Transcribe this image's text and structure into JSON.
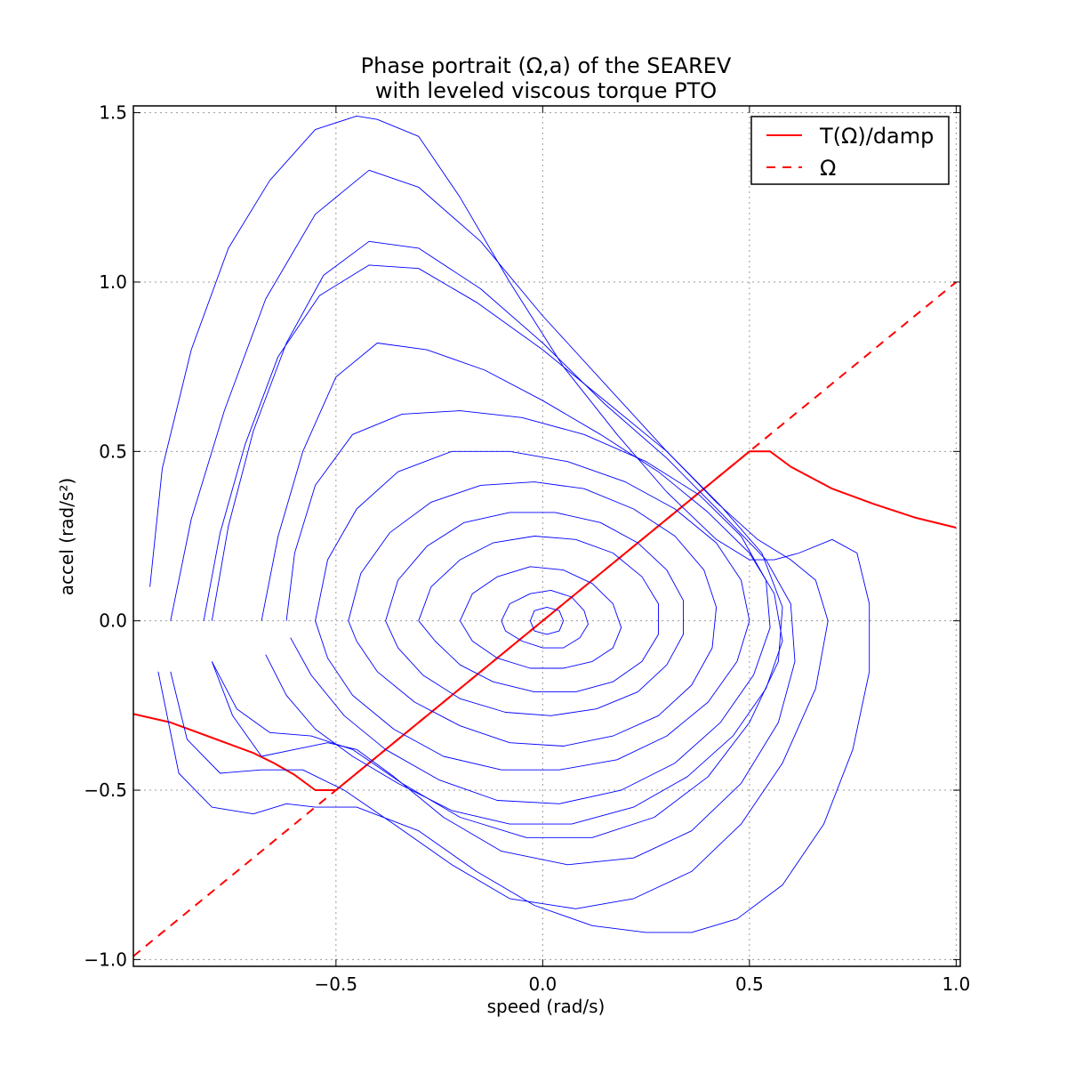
{
  "chart_data": {
    "type": "line",
    "title": "Phase portrait (Ω,a) of the SEAREV",
    "subtitle": "with leveled viscous torque PTO",
    "xlabel": "speed (rad/s)",
    "ylabel": "accel (rad/s²)",
    "xlim": [
      -0.99,
      1.01
    ],
    "ylim": [
      -1.02,
      1.52
    ],
    "xticks": [
      -0.5,
      0.0,
      0.5,
      1.0
    ],
    "xtick_labels": [
      "−0.5",
      "0.0",
      "0.5",
      "1.0"
    ],
    "yticks": [
      -1.0,
      -0.5,
      0.0,
      0.5,
      1.0,
      1.5
    ],
    "ytick_labels": [
      "−1.0",
      "−0.5",
      "0.0",
      "0.5",
      "1.0",
      "1.5"
    ],
    "grid": true,
    "legend_position": "top-right",
    "series": [
      {
        "name": "T(Ω)/damp",
        "color": "#ff0000",
        "style": "solid",
        "x": [
          -0.99,
          -0.9,
          -0.8,
          -0.7,
          -0.65,
          -0.6,
          -0.55,
          -0.5,
          0.5,
          0.55,
          0.6,
          0.7,
          0.8,
          0.9,
          1.0
        ],
        "y": [
          -0.275,
          -0.3,
          -0.345,
          -0.39,
          -0.42,
          -0.455,
          -0.5,
          -0.5,
          0.5,
          0.5,
          0.455,
          0.39,
          0.345,
          0.305,
          0.275
        ]
      },
      {
        "name": "Ω",
        "color": "#ff0000",
        "style": "dashed",
        "x": [
          -0.99,
          1.0
        ],
        "y": [
          -0.99,
          1.0
        ]
      },
      {
        "color": "#0000ff",
        "style": "solid",
        "x": [
          -0.95,
          -0.92,
          -0.85,
          -0.76,
          -0.66,
          -0.55,
          -0.45,
          -0.4,
          -0.3,
          -0.2,
          -0.08,
          0.05,
          0.18,
          0.3,
          0.42,
          0.5,
          0.56,
          0.62,
          0.7,
          0.76,
          0.79,
          0.79,
          0.75,
          0.68,
          0.58,
          0.47,
          0.36,
          0.25,
          0.12,
          -0.02,
          -0.16,
          -0.3,
          -0.45,
          -0.55,
          -0.62,
          -0.7,
          -0.8,
          -0.88,
          -0.93
        ],
        "y": [
          0.1,
          0.45,
          0.8,
          1.1,
          1.3,
          1.45,
          1.49,
          1.48,
          1.43,
          1.25,
          1.0,
          0.75,
          0.55,
          0.38,
          0.24,
          0.18,
          0.18,
          0.2,
          0.24,
          0.2,
          0.05,
          -0.15,
          -0.38,
          -0.6,
          -0.78,
          -0.88,
          -0.92,
          -0.92,
          -0.9,
          -0.84,
          -0.74,
          -0.62,
          -0.55,
          -0.55,
          -0.54,
          -0.57,
          -0.55,
          -0.45,
          -0.15
        ]
      },
      {
        "color": "#0000ff",
        "style": "solid",
        "x": [
          -0.9,
          -0.85,
          -0.77,
          -0.67,
          -0.55,
          -0.42,
          -0.3,
          -0.15,
          0.0,
          0.15,
          0.3,
          0.42,
          0.52,
          0.6,
          0.66,
          0.69,
          0.66,
          0.58,
          0.48,
          0.36,
          0.22,
          0.08,
          -0.08,
          -0.22,
          -0.36,
          -0.48,
          -0.58,
          -0.68,
          -0.78,
          -0.86,
          -0.9
        ],
        "y": [
          0.0,
          0.3,
          0.62,
          0.95,
          1.2,
          1.33,
          1.28,
          1.12,
          0.9,
          0.7,
          0.5,
          0.35,
          0.24,
          0.18,
          0.12,
          0.0,
          -0.2,
          -0.42,
          -0.6,
          -0.74,
          -0.82,
          -0.85,
          -0.82,
          -0.72,
          -0.6,
          -0.5,
          -0.44,
          -0.44,
          -0.45,
          -0.35,
          -0.15
        ]
      },
      {
        "color": "#0000ff",
        "style": "solid",
        "x": [
          -0.8,
          -0.76,
          -0.7,
          -0.62,
          -0.53,
          -0.42,
          -0.3,
          -0.15,
          0.0,
          0.15,
          0.3,
          0.43,
          0.54,
          0.6,
          0.61,
          0.57,
          0.48,
          0.36,
          0.22,
          0.06,
          -0.1,
          -0.24,
          -0.36,
          -0.45,
          -0.52,
          -0.6,
          -0.68,
          -0.75,
          -0.8
        ],
        "y": [
          0.0,
          0.28,
          0.56,
          0.82,
          1.02,
          1.12,
          1.1,
          0.98,
          0.82,
          0.64,
          0.48,
          0.32,
          0.18,
          0.05,
          -0.12,
          -0.3,
          -0.48,
          -0.62,
          -0.7,
          -0.72,
          -0.68,
          -0.58,
          -0.46,
          -0.38,
          -0.36,
          -0.38,
          -0.4,
          -0.28,
          -0.12
        ]
      },
      {
        "color": "#0000ff",
        "style": "solid",
        "x": [
          -0.82,
          -0.78,
          -0.72,
          -0.64,
          -0.54,
          -0.42,
          -0.3,
          -0.16,
          0.0,
          0.16,
          0.3,
          0.43,
          0.53,
          0.58,
          0.57,
          0.5,
          0.4,
          0.27,
          0.12,
          -0.04,
          -0.2,
          -0.34,
          -0.46,
          -0.56,
          -0.66,
          -0.74,
          -0.8
        ],
        "y": [
          0.0,
          0.26,
          0.52,
          0.78,
          0.96,
          1.05,
          1.04,
          0.94,
          0.8,
          0.64,
          0.5,
          0.34,
          0.2,
          0.04,
          -0.12,
          -0.3,
          -0.46,
          -0.58,
          -0.64,
          -0.64,
          -0.58,
          -0.48,
          -0.38,
          -0.34,
          -0.33,
          -0.26,
          -0.12
        ]
      },
      {
        "color": "#0000ff",
        "style": "solid",
        "x": [
          -0.68,
          -0.64,
          -0.58,
          -0.5,
          -0.4,
          -0.28,
          -0.14,
          0.0,
          0.14,
          0.28,
          0.4,
          0.5,
          0.56,
          0.58,
          0.54,
          0.46,
          0.35,
          0.22,
          0.07,
          -0.08,
          -0.22,
          -0.35,
          -0.46,
          -0.55,
          -0.62,
          -0.67
        ],
        "y": [
          0.0,
          0.25,
          0.5,
          0.72,
          0.82,
          0.8,
          0.74,
          0.65,
          0.55,
          0.44,
          0.32,
          0.2,
          0.08,
          -0.06,
          -0.2,
          -0.34,
          -0.46,
          -0.55,
          -0.6,
          -0.6,
          -0.56,
          -0.48,
          -0.4,
          -0.32,
          -0.22,
          -0.1
        ]
      },
      {
        "color": "#0000ff",
        "style": "solid",
        "x": [
          -0.62,
          -0.6,
          -0.55,
          -0.46,
          -0.34,
          -0.2,
          -0.05,
          0.1,
          0.25,
          0.38,
          0.48,
          0.54,
          0.55,
          0.51,
          0.43,
          0.32,
          0.19,
          0.04,
          -0.11,
          -0.25,
          -0.38,
          -0.48,
          -0.56,
          -0.61
        ],
        "y": [
          0.0,
          0.2,
          0.4,
          0.55,
          0.61,
          0.62,
          0.6,
          0.55,
          0.47,
          0.37,
          0.25,
          0.12,
          -0.02,
          -0.16,
          -0.3,
          -0.42,
          -0.5,
          -0.54,
          -0.53,
          -0.47,
          -0.38,
          -0.28,
          -0.16,
          -0.05
        ]
      },
      {
        "color": "#0000ff",
        "style": "solid",
        "x": [
          -0.55,
          -0.52,
          -0.45,
          -0.35,
          -0.22,
          -0.08,
          0.06,
          0.2,
          0.32,
          0.42,
          0.48,
          0.5,
          0.47,
          0.4,
          0.3,
          0.18,
          0.04,
          -0.1,
          -0.24,
          -0.36,
          -0.46,
          -0.52,
          -0.55
        ],
        "y": [
          0.0,
          0.18,
          0.33,
          0.44,
          0.5,
          0.5,
          0.47,
          0.41,
          0.33,
          0.23,
          0.12,
          0.0,
          -0.12,
          -0.24,
          -0.34,
          -0.41,
          -0.44,
          -0.44,
          -0.4,
          -0.32,
          -0.22,
          -0.11,
          0.0
        ]
      },
      {
        "color": "#0000ff",
        "style": "solid",
        "x": [
          -0.47,
          -0.44,
          -0.37,
          -0.27,
          -0.15,
          -0.02,
          0.1,
          0.22,
          0.32,
          0.39,
          0.42,
          0.41,
          0.36,
          0.28,
          0.17,
          0.05,
          -0.08,
          -0.2,
          -0.31,
          -0.4,
          -0.45,
          -0.47
        ],
        "y": [
          0.0,
          0.14,
          0.26,
          0.35,
          0.4,
          0.41,
          0.39,
          0.33,
          0.25,
          0.15,
          0.04,
          -0.08,
          -0.19,
          -0.28,
          -0.34,
          -0.37,
          -0.36,
          -0.31,
          -0.24,
          -0.15,
          -0.06,
          0.0
        ]
      },
      {
        "color": "#0000ff",
        "style": "solid",
        "x": [
          -0.38,
          -0.35,
          -0.28,
          -0.19,
          -0.08,
          0.03,
          0.14,
          0.23,
          0.3,
          0.34,
          0.34,
          0.3,
          0.23,
          0.13,
          0.02,
          -0.09,
          -0.2,
          -0.29,
          -0.35,
          -0.38
        ],
        "y": [
          0.0,
          0.12,
          0.22,
          0.29,
          0.32,
          0.32,
          0.29,
          0.23,
          0.15,
          0.06,
          -0.04,
          -0.13,
          -0.21,
          -0.26,
          -0.28,
          -0.27,
          -0.23,
          -0.16,
          -0.08,
          0.0
        ]
      },
      {
        "color": "#0000ff",
        "style": "solid",
        "x": [
          -0.3,
          -0.27,
          -0.2,
          -0.12,
          -0.02,
          0.08,
          0.17,
          0.24,
          0.28,
          0.28,
          0.24,
          0.17,
          0.08,
          -0.02,
          -0.12,
          -0.2,
          -0.26,
          -0.3
        ],
        "y": [
          0.0,
          0.1,
          0.18,
          0.23,
          0.25,
          0.24,
          0.2,
          0.13,
          0.05,
          -0.04,
          -0.12,
          -0.18,
          -0.21,
          -0.21,
          -0.18,
          -0.13,
          -0.06,
          0.0
        ]
      },
      {
        "color": "#0000ff",
        "style": "solid",
        "x": [
          -0.2,
          -0.17,
          -0.11,
          -0.03,
          0.05,
          0.12,
          0.17,
          0.19,
          0.17,
          0.12,
          0.05,
          -0.03,
          -0.11,
          -0.17,
          -0.2
        ],
        "y": [
          0.0,
          0.08,
          0.13,
          0.16,
          0.15,
          0.11,
          0.05,
          -0.02,
          -0.08,
          -0.12,
          -0.14,
          -0.14,
          -0.11,
          -0.06,
          0.0
        ]
      },
      {
        "color": "#0000ff",
        "style": "solid",
        "x": [
          -0.1,
          -0.08,
          -0.03,
          0.02,
          0.07,
          0.1,
          0.11,
          0.09,
          0.05,
          0.0,
          -0.05,
          -0.09,
          -0.1
        ],
        "y": [
          0.0,
          0.05,
          0.08,
          0.09,
          0.07,
          0.03,
          -0.01,
          -0.05,
          -0.08,
          -0.08,
          -0.06,
          -0.03,
          0.0
        ]
      },
      {
        "color": "#0000ff",
        "style": "solid",
        "x": [
          -0.03,
          -0.02,
          0.01,
          0.04,
          0.05,
          0.04,
          0.01,
          -0.02,
          -0.03
        ],
        "y": [
          0.0,
          0.03,
          0.04,
          0.03,
          0.0,
          -0.03,
          -0.04,
          -0.03,
          0.0
        ]
      }
    ]
  }
}
